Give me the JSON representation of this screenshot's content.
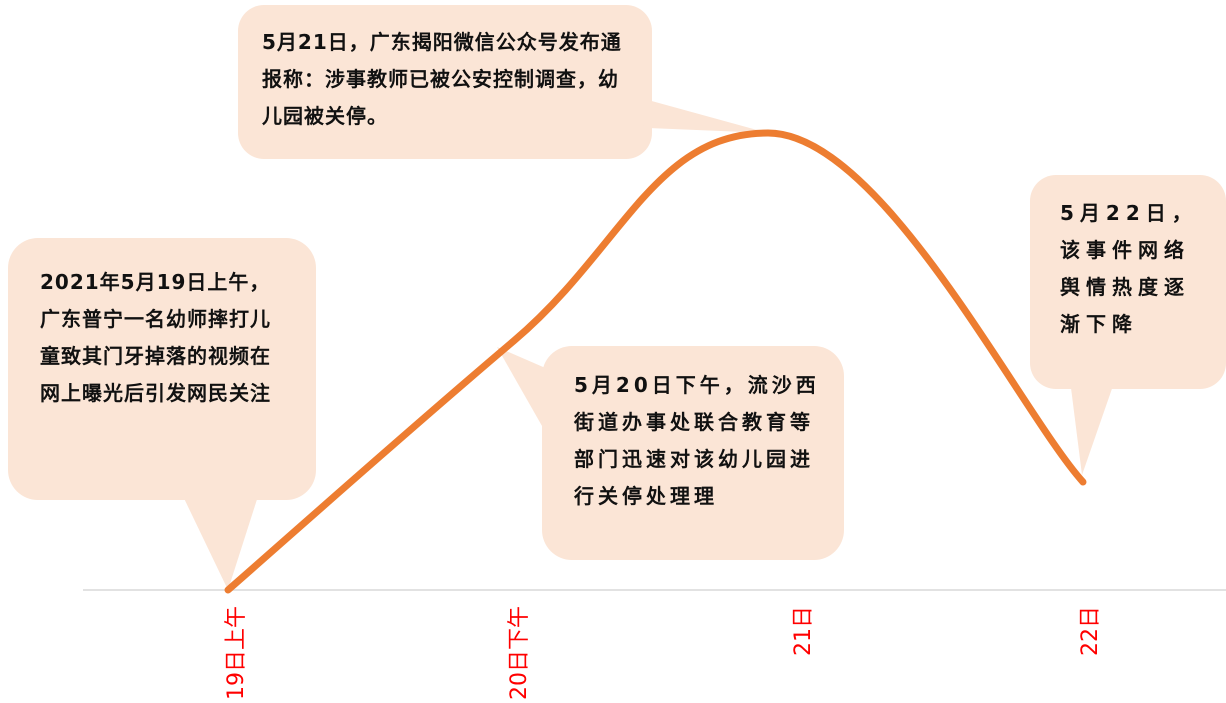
{
  "chart_data": {
    "type": "line",
    "title": "",
    "xlabel": "",
    "ylabel": "",
    "x_labels": [
      "19日上午",
      "20日下午",
      "21日",
      "22日"
    ],
    "series": [
      {
        "values": [
          0,
          3,
          5.5,
          1.3
        ]
      }
    ],
    "line_color": "#ed7d31",
    "axis_color": "#d9d9d9",
    "tick_label_color": "#ff0000",
    "callout_fill": "#fbe5d6",
    "grid": false,
    "annotations": [
      {
        "label": "2021年5月19日上午，广东普宁一名幼师摔打儿童致其门牙掉落的视频在网上曝光后引发网民关注"
      },
      {
        "label": "5月20日下午，流沙西街道办事处联合教育等部门迅速对该幼儿园进行关停处理理"
      },
      {
        "label": "5月21日，广东揭阳微信公众号发布通报称：涉事教师已被公安控制调查，幼儿园被关停。"
      },
      {
        "label": "5月22日，该事件网络舆情热度逐渐下降"
      }
    ]
  }
}
